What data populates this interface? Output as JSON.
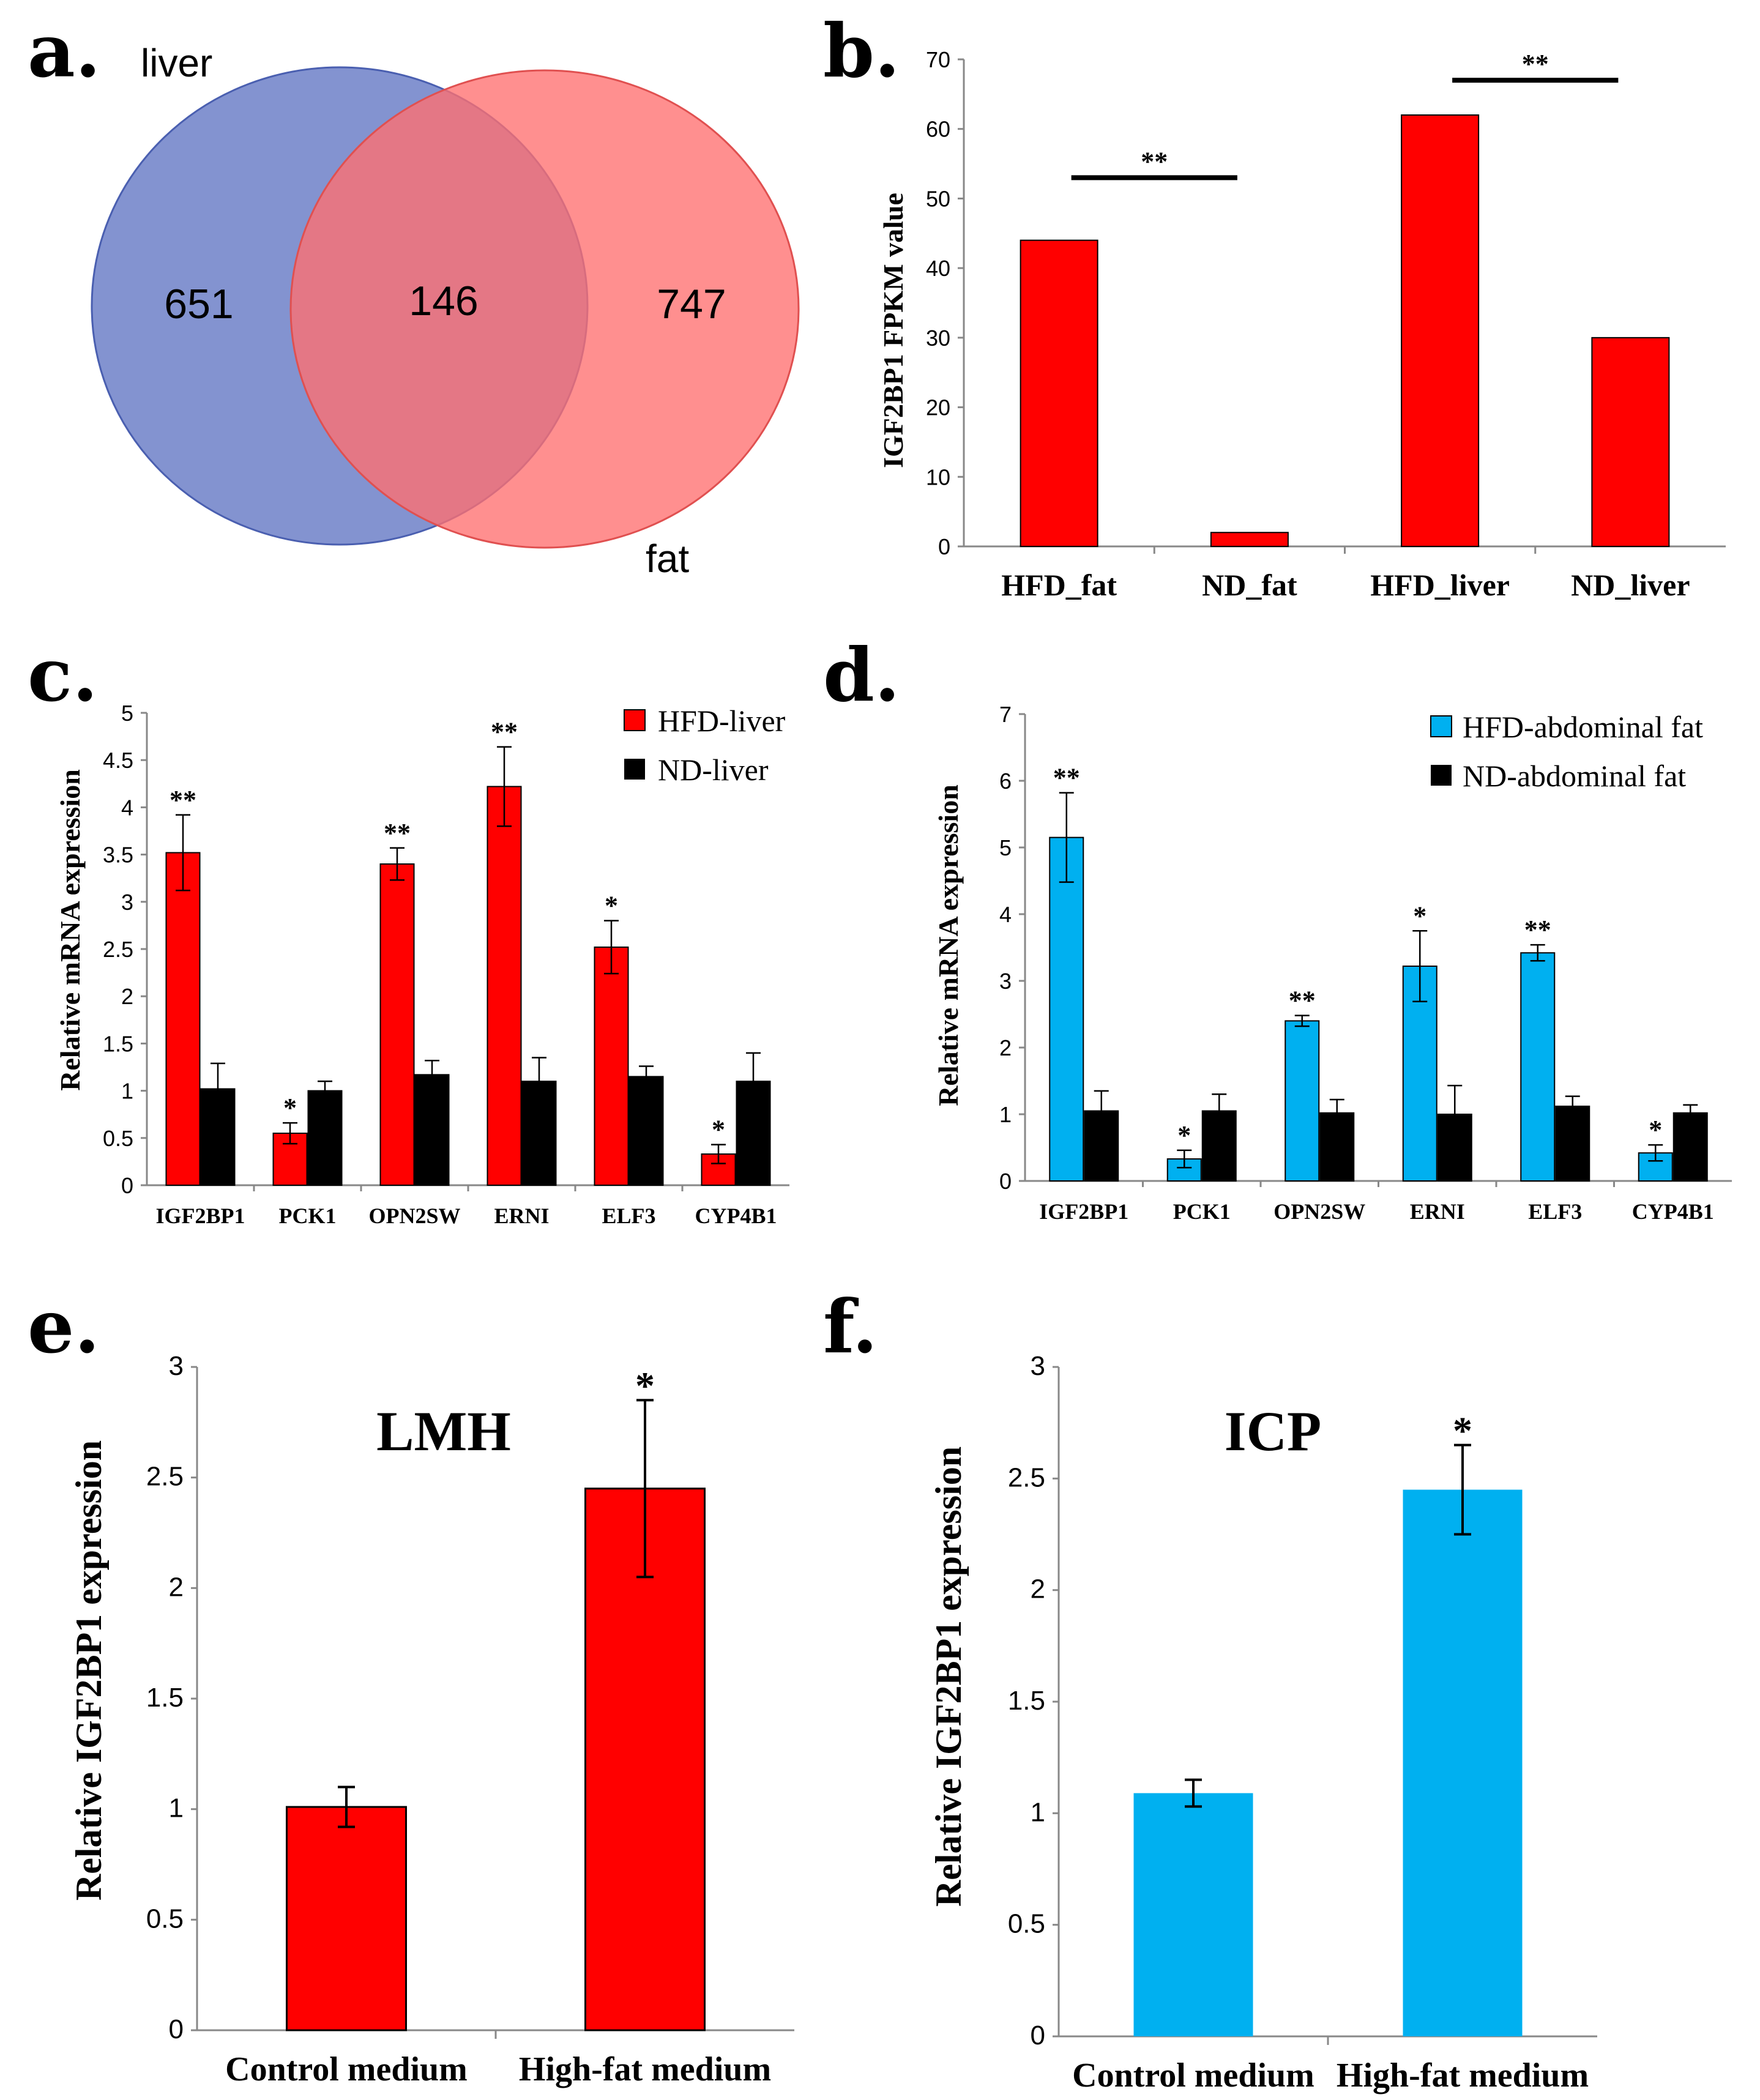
{
  "panel_letters": {
    "a": "a.",
    "b": "b.",
    "c": "c.",
    "d": "d.",
    "e": "e.",
    "f": "f."
  },
  "colors": {
    "liver": "#5a6fc0",
    "fat": "#ff6f6f",
    "red": "#ff0000",
    "blue": "#00b0f0",
    "black": "#000000"
  },
  "chart_data": [
    {
      "panel": "a",
      "type": "venn",
      "sets": [
        {
          "label": "liver",
          "unique_count": "651"
        },
        {
          "label": "fat",
          "unique_count": "747"
        }
      ],
      "intersection_count": "146"
    },
    {
      "panel": "b",
      "type": "bar",
      "title": "",
      "ylabel": "IGF2BP1 FPKM value",
      "ylim": [
        0,
        70
      ],
      "yticks": [
        "0",
        "10",
        "20",
        "30",
        "40",
        "50",
        "60",
        "70"
      ],
      "categories": [
        "HFD_fat",
        "ND_fat",
        "HFD_liver",
        "ND_liver"
      ],
      "values": [
        44,
        2,
        62,
        30
      ],
      "significance": [
        {
          "label": "**",
          "between": [
            0,
            1
          ],
          "level": 53
        },
        {
          "label": "**",
          "between": [
            2,
            3
          ],
          "level": 67
        }
      ]
    },
    {
      "panel": "c",
      "type": "bar",
      "ylabel": "Relative mRNA expression",
      "ylim": [
        0,
        5
      ],
      "yticks": [
        "0",
        "0.5",
        "1",
        "1.5",
        "2",
        "2.5",
        "3",
        "3.5",
        "4",
        "4.5",
        "5"
      ],
      "categories": [
        "IGF2BP1",
        "PCK1",
        "OPN2SW",
        "ERNI",
        "ELF3",
        "CYP4B1"
      ],
      "series": [
        {
          "name": "HFD-liver",
          "values": [
            3.52,
            0.55,
            3.4,
            4.22,
            2.52,
            0.33
          ],
          "errors": [
            0.4,
            0.11,
            0.17,
            0.42,
            0.28,
            0.1
          ],
          "sig": [
            "**",
            "*",
            "**",
            "**",
            "*",
            "*"
          ]
        },
        {
          "name": "ND-liver",
          "values": [
            1.02,
            1.0,
            1.17,
            1.1,
            1.15,
            1.1
          ],
          "errors": [
            0.27,
            0.1,
            0.15,
            0.25,
            0.11,
            0.3
          ],
          "sig": [
            "",
            "",
            "",
            "",
            "",
            ""
          ]
        }
      ]
    },
    {
      "panel": "d",
      "type": "bar",
      "ylabel": "Relative mRNA expression",
      "ylim": [
        0,
        7
      ],
      "yticks": [
        "0",
        "1",
        "2",
        "3",
        "4",
        "5",
        "6",
        "7"
      ],
      "categories": [
        "IGF2BP1",
        "PCK1",
        "OPN2SW",
        "ERNI",
        "ELF3",
        "CYP4B1"
      ],
      "series": [
        {
          "name": "HFD-abdominal fat",
          "values": [
            5.15,
            0.33,
            2.4,
            3.22,
            3.42,
            0.42
          ],
          "errors": [
            0.67,
            0.13,
            0.08,
            0.53,
            0.12,
            0.12
          ],
          "sig": [
            "**",
            "*",
            "**",
            "*",
            "**",
            "*"
          ]
        },
        {
          "name": "ND-abdominal fat",
          "values": [
            1.05,
            1.05,
            1.02,
            1.0,
            1.12,
            1.02
          ],
          "errors": [
            0.3,
            0.25,
            0.2,
            0.43,
            0.15,
            0.12
          ],
          "sig": [
            "",
            "",
            "",
            "",
            "",
            ""
          ]
        }
      ]
    },
    {
      "panel": "e",
      "type": "bar",
      "title": "LMH",
      "ylabel": "Relative IGF2BP1 expression",
      "ylim": [
        0,
        3
      ],
      "yticks": [
        "0",
        "0.5",
        "1",
        "1.5",
        "2",
        "2.5",
        "3"
      ],
      "categories": [
        "Control medium",
        "High-fat medium"
      ],
      "values": [
        1.01,
        2.45
      ],
      "errors": [
        0.09,
        0.4
      ],
      "sig": [
        "",
        "*"
      ]
    },
    {
      "panel": "f",
      "type": "bar",
      "title": "ICP",
      "ylabel": "Relative IGF2BP1 expression",
      "ylim": [
        0,
        3
      ],
      "yticks": [
        "0",
        "0.5",
        "1",
        "1.5",
        "2",
        "2.5",
        "3"
      ],
      "categories": [
        "Control medium",
        "High-fat medium"
      ],
      "values": [
        1.09,
        2.45
      ],
      "errors": [
        0.06,
        0.2
      ],
      "sig": [
        "",
        "*"
      ]
    }
  ]
}
